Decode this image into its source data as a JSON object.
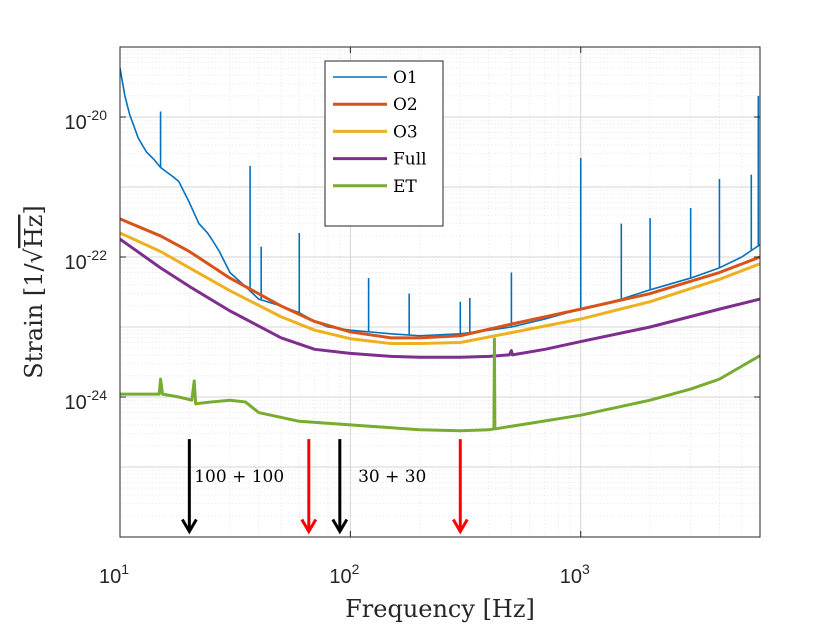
{
  "chart_data": {
    "type": "line",
    "xlabel": "Frequency [Hz]",
    "ylabel_prefix": "Strain [1/",
    "ylabel_sqrt": "Hz",
    "ylabel_suffix": "]",
    "xscale": "log",
    "yscale": "log",
    "xlim": [
      10,
      6000
    ],
    "ylim": [
      1e-26,
      1e-19
    ],
    "grid": true,
    "legend_position": "top-center",
    "x_ticks": [
      {
        "value": 10,
        "base": "10",
        "exp": "1"
      },
      {
        "value": 100,
        "base": "10",
        "exp": "2"
      },
      {
        "value": 1000,
        "base": "10",
        "exp": "3"
      }
    ],
    "y_ticks": [
      {
        "value": 1e-20,
        "base": "10",
        "exp": "-20"
      },
      {
        "value": 1e-22,
        "base": "10",
        "exp": "-22"
      },
      {
        "value": 1e-24,
        "base": "10",
        "exp": "-24"
      }
    ],
    "series": [
      {
        "name": "O1",
        "color": "#0072BD",
        "width": 1.6,
        "points": [
          [
            10,
            5e-20
          ],
          [
            10.5,
            2e-20
          ],
          [
            11,
            1.1e-20
          ],
          [
            12,
            5e-21
          ],
          [
            13,
            3.2e-21
          ],
          [
            14,
            2.5e-21
          ],
          [
            15,
            1.9e-21
          ],
          [
            17,
            1.4e-21
          ],
          [
            18,
            1.2e-21
          ],
          [
            20,
            6e-22
          ],
          [
            22,
            3e-22
          ],
          [
            24,
            2.2e-22
          ],
          [
            25,
            1.8e-22
          ],
          [
            27,
            1.2e-22
          ],
          [
            30,
            6e-23
          ],
          [
            35,
            3.8e-23
          ],
          [
            40,
            2.5e-23
          ],
          [
            50,
            2e-23
          ],
          [
            60,
            1.6e-23
          ],
          [
            70,
            1.2e-23
          ],
          [
            80,
            1e-23
          ],
          [
            100,
            9e-24
          ],
          [
            150,
            8e-24
          ],
          [
            200,
            7.5e-24
          ],
          [
            300,
            8e-24
          ],
          [
            400,
            9e-24
          ],
          [
            500,
            1e-23
          ],
          [
            700,
            1.3e-23
          ],
          [
            1000,
            1.8e-23
          ],
          [
            1500,
            2.5e-23
          ],
          [
            2000,
            3.4e-23
          ],
          [
            3000,
            5e-23
          ],
          [
            4000,
            7e-23
          ],
          [
            5000,
            1e-22
          ],
          [
            6000,
            1.5e-22
          ]
        ],
        "spikes": [
          [
            15,
            1.2e-20
          ],
          [
            36.7,
            2e-21
          ],
          [
            41,
            1.4e-22
          ],
          [
            60,
            2.2e-22
          ],
          [
            120,
            5e-23
          ],
          [
            180,
            3e-23
          ],
          [
            300,
            2.3e-23
          ],
          [
            330,
            2.6e-23
          ],
          [
            500,
            6e-23
          ],
          [
            1000,
            2.6e-21
          ],
          [
            1500,
            3e-22
          ],
          [
            2000,
            3.6e-22
          ],
          [
            3000,
            5e-22
          ],
          [
            4000,
            1.3e-21
          ],
          [
            5500,
            1.5e-21
          ],
          [
            5900,
            2e-20
          ]
        ]
      },
      {
        "name": "O2",
        "color": "#D95319",
        "width": 3,
        "points": [
          [
            10,
            3.5e-22
          ],
          [
            15,
            2e-22
          ],
          [
            20,
            1.2e-22
          ],
          [
            30,
            5e-23
          ],
          [
            50,
            2e-23
          ],
          [
            70,
            1.2e-23
          ],
          [
            100,
            8.5e-24
          ],
          [
            150,
            7e-24
          ],
          [
            200,
            7e-24
          ],
          [
            300,
            7.5e-24
          ],
          [
            500,
            1.1e-23
          ],
          [
            1000,
            1.8e-23
          ],
          [
            2000,
            3e-23
          ],
          [
            4000,
            6e-23
          ],
          [
            6000,
            1e-22
          ]
        ]
      },
      {
        "name": "O3",
        "color": "#EDB120",
        "width": 3,
        "points": [
          [
            10,
            2.2e-22
          ],
          [
            15,
            1.2e-22
          ],
          [
            20,
            7e-23
          ],
          [
            30,
            3.3e-23
          ],
          [
            50,
            1.4e-23
          ],
          [
            70,
            9e-24
          ],
          [
            100,
            6.8e-24
          ],
          [
            150,
            5.8e-24
          ],
          [
            200,
            5.8e-24
          ],
          [
            300,
            6e-24
          ],
          [
            500,
            8.3e-24
          ],
          [
            1000,
            1.3e-23
          ],
          [
            2000,
            2.3e-23
          ],
          [
            4000,
            4.8e-23
          ],
          [
            6000,
            8e-23
          ]
        ]
      },
      {
        "name": "Full",
        "color": "#7E2F8E",
        "width": 3,
        "points": [
          [
            10,
            1.8e-22
          ],
          [
            15,
            7e-23
          ],
          [
            20,
            3.8e-23
          ],
          [
            30,
            1.7e-23
          ],
          [
            50,
            7e-24
          ],
          [
            70,
            4.8e-24
          ],
          [
            100,
            4.2e-24
          ],
          [
            150,
            3.8e-24
          ],
          [
            200,
            3.7e-24
          ],
          [
            300,
            3.7e-24
          ],
          [
            400,
            3.8e-24
          ],
          [
            490,
            4e-24
          ],
          [
            500,
            4.6e-24
          ],
          [
            505,
            4e-24
          ],
          [
            700,
            4.8e-24
          ],
          [
            1000,
            6.2e-24
          ],
          [
            2000,
            1e-23
          ],
          [
            4000,
            1.8e-23
          ],
          [
            6000,
            2.5e-23
          ]
        ]
      },
      {
        "name": "ET",
        "color": "#77AC30",
        "width": 3,
        "points": [
          [
            10,
            1.1e-24
          ],
          [
            12,
            1.1e-24
          ],
          [
            14.8,
            1.1e-24
          ],
          [
            15,
            1.8e-24
          ],
          [
            15.3,
            1.1e-24
          ],
          [
            18,
            1e-24
          ],
          [
            20.5,
            9e-25
          ],
          [
            21,
            1.7e-24
          ],
          [
            21.3,
            8e-25
          ],
          [
            25,
            8.5e-25
          ],
          [
            30,
            9e-25
          ],
          [
            35,
            8.5e-25
          ],
          [
            40,
            6e-25
          ],
          [
            60,
            4.5e-25
          ],
          [
            100,
            4e-25
          ],
          [
            200,
            3.4e-25
          ],
          [
            300,
            3.3e-25
          ],
          [
            400,
            3.4e-25
          ],
          [
            420,
            3.5e-25
          ],
          [
            422,
            6.7e-24
          ],
          [
            424,
            3.5e-25
          ],
          [
            600,
            4.2e-25
          ],
          [
            1000,
            5.5e-25
          ],
          [
            2000,
            9e-25
          ],
          [
            3000,
            1.3e-24
          ],
          [
            4000,
            1.8e-24
          ],
          [
            6000,
            3.9e-24
          ]
        ]
      }
    ],
    "annotations": [
      {
        "text": "100 + 100",
        "x": 21
      },
      {
        "text": "30 + 30",
        "x": 108
      }
    ],
    "arrows": [
      {
        "x": 20,
        "color": "#000000"
      },
      {
        "x": 66,
        "color": "#FF0000"
      },
      {
        "x": 90,
        "color": "#000000"
      },
      {
        "x": 300,
        "color": "#FF0000"
      }
    ],
    "arrow_y_from": 2.5e-25,
    "arrow_y_to": 1.2e-26
  }
}
